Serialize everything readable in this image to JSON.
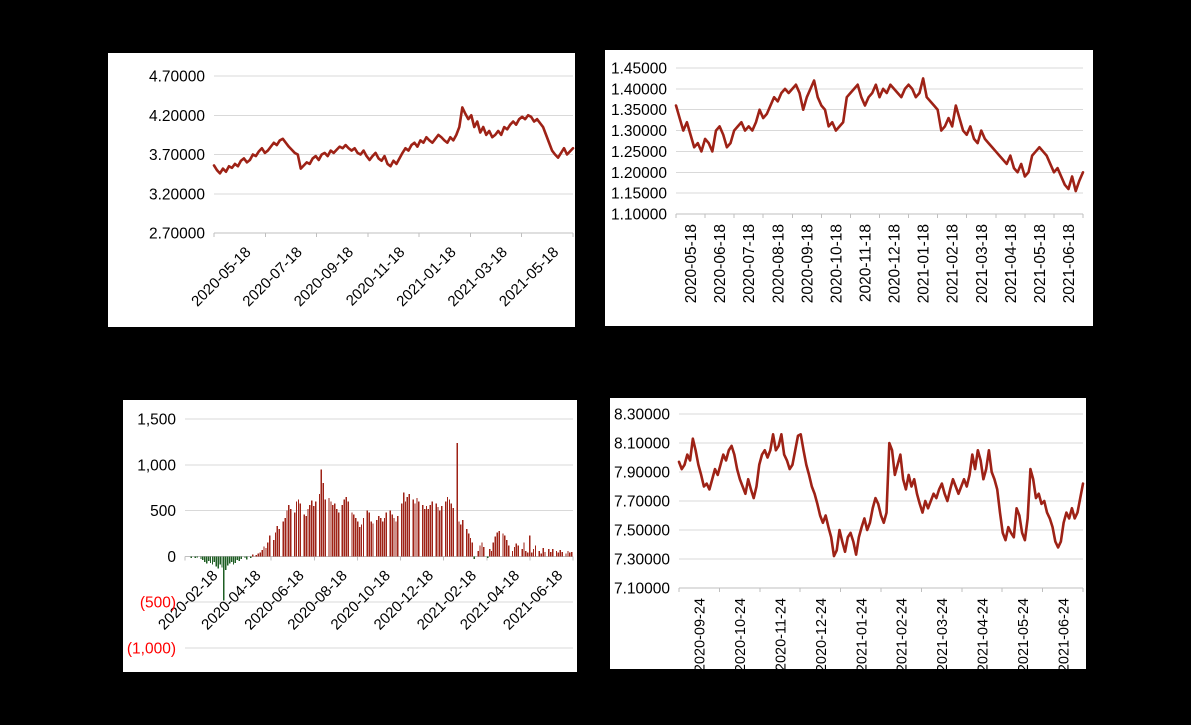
{
  "page": {
    "background_color": "#000000",
    "panel_color": "#FFFFFF"
  },
  "chart_data": [
    {
      "name": "top-left-fx-line",
      "type": "line",
      "line_color": "#9E2216",
      "grid_color": "#D9D9D9",
      "axis_color": "#BFBFBF",
      "label_color": "#000000",
      "negative_label_color": "#FF0000",
      "grid": true,
      "legend": false,
      "ylim": [
        2.7,
        4.7
      ],
      "ytick_step": 0.5,
      "ytick_labels": [
        "4.70000",
        "4.20000",
        "3.70000",
        "3.20000",
        "2.70000"
      ],
      "x_label_rotation": 45,
      "xtick_labels": [
        "2020-05-18",
        "2020-07-18",
        "2020-09-18",
        "2020-11-18",
        "2021-01-18",
        "2021-03-18",
        "2021-05-18"
      ],
      "values": [
        3.56,
        3.5,
        3.46,
        3.52,
        3.48,
        3.55,
        3.53,
        3.58,
        3.55,
        3.62,
        3.65,
        3.6,
        3.63,
        3.7,
        3.68,
        3.74,
        3.78,
        3.72,
        3.75,
        3.8,
        3.85,
        3.82,
        3.88,
        3.9,
        3.85,
        3.8,
        3.76,
        3.72,
        3.7,
        3.52,
        3.56,
        3.6,
        3.58,
        3.65,
        3.68,
        3.63,
        3.7,
        3.72,
        3.68,
        3.75,
        3.72,
        3.76,
        3.8,
        3.78,
        3.82,
        3.78,
        3.75,
        3.78,
        3.72,
        3.7,
        3.75,
        3.68,
        3.63,
        3.68,
        3.72,
        3.65,
        3.62,
        3.68,
        3.58,
        3.55,
        3.62,
        3.58,
        3.65,
        3.72,
        3.78,
        3.75,
        3.82,
        3.85,
        3.8,
        3.88,
        3.85,
        3.92,
        3.88,
        3.85,
        3.9,
        3.95,
        3.92,
        3.88,
        3.85,
        3.92,
        3.88,
        3.95,
        4.05,
        4.3,
        4.22,
        4.15,
        4.2,
        4.05,
        4.12,
        3.98,
        4.05,
        3.95,
        4.0,
        3.92,
        3.95,
        4.0,
        3.95,
        4.05,
        4.02,
        4.08,
        4.12,
        4.08,
        4.15,
        4.18,
        4.15,
        4.2,
        4.18,
        4.12,
        4.15,
        4.1,
        4.05,
        3.95,
        3.85,
        3.75,
        3.7,
        3.66,
        3.72,
        3.78,
        3.7,
        3.74,
        3.78
      ]
    },
    {
      "name": "top-right-fx-line",
      "type": "line",
      "line_color": "#9E2216",
      "grid_color": "#D9D9D9",
      "axis_color": "#BFBFBF",
      "label_color": "#000000",
      "negative_label_color": "#FF0000",
      "grid": true,
      "legend": false,
      "ylim": [
        1.1,
        1.45
      ],
      "ytick_step": 0.05,
      "ytick_labels": [
        "1.45000",
        "1.40000",
        "1.35000",
        "1.30000",
        "1.25000",
        "1.20000",
        "1.15000",
        "1.10000"
      ],
      "x_label_rotation": 90,
      "xtick_labels": [
        "2020-05-18",
        "2020-06-18",
        "2020-07-18",
        "2020-08-18",
        "2020-09-18",
        "2020-10-18",
        "2020-11-18",
        "2020-12-18",
        "2021-01-18",
        "2021-02-18",
        "2021-03-18",
        "2021-04-18",
        "2021-05-18",
        "2021-06-18"
      ],
      "values": [
        1.36,
        1.33,
        1.3,
        1.32,
        1.29,
        1.26,
        1.27,
        1.25,
        1.28,
        1.27,
        1.25,
        1.3,
        1.31,
        1.29,
        1.26,
        1.27,
        1.3,
        1.31,
        1.32,
        1.3,
        1.31,
        1.3,
        1.32,
        1.35,
        1.33,
        1.34,
        1.36,
        1.38,
        1.37,
        1.39,
        1.4,
        1.39,
        1.4,
        1.41,
        1.39,
        1.35,
        1.38,
        1.4,
        1.42,
        1.38,
        1.36,
        1.35,
        1.31,
        1.32,
        1.3,
        1.31,
        1.32,
        1.38,
        1.39,
        1.4,
        1.41,
        1.38,
        1.36,
        1.38,
        1.39,
        1.41,
        1.38,
        1.4,
        1.39,
        1.41,
        1.4,
        1.39,
        1.38,
        1.4,
        1.41,
        1.4,
        1.38,
        1.39,
        1.425,
        1.38,
        1.37,
        1.36,
        1.35,
        1.3,
        1.31,
        1.33,
        1.31,
        1.36,
        1.33,
        1.3,
        1.29,
        1.31,
        1.28,
        1.27,
        1.3,
        1.28,
        1.27,
        1.26,
        1.25,
        1.24,
        1.23,
        1.22,
        1.24,
        1.21,
        1.2,
        1.22,
        1.19,
        1.2,
        1.24,
        1.25,
        1.26,
        1.25,
        1.24,
        1.22,
        1.2,
        1.21,
        1.19,
        1.17,
        1.16,
        1.19,
        1.155,
        1.18,
        1.2
      ]
    },
    {
      "name": "bottom-left-volume-bars",
      "type": "bar",
      "bar_positive_color": "#9E2216",
      "bar_negative_color": "#1E5E23",
      "grid_color": "#D9D9D9",
      "axis_color": "#BFBFBF",
      "label_color": "#000000",
      "negative_label_color": "#FF0000",
      "grid": true,
      "legend": false,
      "axis_value": 0,
      "ylim": [
        -1000,
        1500
      ],
      "ytick_step": 500,
      "ytick_labels": [
        "1,500",
        "1,000",
        "500",
        "0",
        "(500)",
        "(1,000)"
      ],
      "x_label_rotation": 45,
      "xtick_labels": [
        "2020-02-18",
        "2020-04-18",
        "2020-06-18",
        "2020-08-18",
        "2020-10-18",
        "2020-12-18",
        "2021-02-18",
        "2021-04-18",
        "2021-06-18"
      ],
      "values": [
        0,
        0,
        0,
        -15,
        0,
        -20,
        -10,
        0,
        -30,
        -40,
        -60,
        -80,
        -50,
        -70,
        -90,
        -60,
        -110,
        -130,
        -90,
        -120,
        -480,
        -150,
        -100,
        -80,
        -60,
        -90,
        -70,
        -40,
        -50,
        -30,
        0,
        -20,
        -35,
        0,
        -15,
        20,
        0,
        15,
        30,
        40,
        70,
        110,
        90,
        150,
        230,
        0,
        180,
        260,
        330,
        300,
        0,
        380,
        420,
        500,
        560,
        520,
        0,
        480,
        600,
        620,
        580,
        0,
        460,
        440,
        520,
        560,
        610,
        550,
        600,
        0,
        680,
        950,
        800,
        620,
        0,
        640,
        600,
        560,
        580,
        520,
        480,
        0,
        560,
        620,
        650,
        600,
        0,
        480,
        460,
        420,
        380,
        320,
        350,
        420,
        0,
        500,
        480,
        380,
        360,
        0,
        400,
        440,
        420,
        380,
        420,
        480,
        0,
        500,
        460,
        420,
        380,
        440,
        0,
        580,
        700,
        600,
        650,
        680,
        0,
        620,
        580,
        640,
        600,
        0,
        560,
        520,
        550,
        520,
        560,
        600,
        0,
        580,
        540,
        500,
        550,
        0,
        600,
        650,
        620,
        580,
        530,
        0,
        1240,
        380,
        350,
        400,
        0,
        300,
        250,
        200,
        150,
        -30,
        0,
        60,
        120,
        150,
        100,
        0,
        -20,
        80,
        60,
        150,
        220,
        260,
        280,
        0,
        250,
        230,
        180,
        120,
        0,
        60,
        100,
        140,
        120,
        0,
        80,
        150,
        60,
        40,
        230,
        40,
        80,
        120,
        0,
        60,
        30,
        90,
        50,
        0,
        80,
        50,
        80,
        0,
        60,
        40,
        70,
        50,
        0,
        30,
        60,
        40,
        50
      ]
    },
    {
      "name": "bottom-right-fx-line",
      "type": "line",
      "line_color": "#9E2216",
      "grid_color": "#D9D9D9",
      "axis_color": "#BFBFBF",
      "label_color": "#000000",
      "negative_label_color": "#FF0000",
      "grid": true,
      "legend": false,
      "ylim": [
        7.1,
        8.3
      ],
      "ytick_step": 0.2,
      "ytick_labels": [
        "8.30000",
        "8.10000",
        "7.90000",
        "7.70000",
        "7.50000",
        "7.30000",
        "7.10000"
      ],
      "x_label_rotation": 90,
      "xtick_labels": [
        "2020-09-24",
        "2020-10-24",
        "2020-11-24",
        "2020-12-24",
        "2021-01-24",
        "2021-02-24",
        "2021-03-24",
        "2021-04-24",
        "2021-05-24",
        "2021-06-24"
      ],
      "values": [
        7.97,
        7.92,
        7.95,
        8.02,
        7.98,
        8.13,
        8.05,
        7.95,
        7.88,
        7.8,
        7.82,
        7.78,
        7.85,
        7.92,
        7.88,
        7.95,
        8.02,
        7.98,
        8.05,
        8.08,
        8.02,
        7.92,
        7.85,
        7.8,
        7.75,
        7.85,
        7.78,
        7.72,
        7.8,
        7.95,
        8.02,
        8.05,
        8.0,
        8.05,
        8.16,
        8.05,
        8.08,
        8.16,
        8.02,
        7.98,
        7.92,
        7.95,
        8.05,
        8.15,
        8.16,
        8.05,
        7.95,
        7.88,
        7.8,
        7.75,
        7.68,
        7.6,
        7.55,
        7.6,
        7.52,
        7.45,
        7.32,
        7.36,
        7.5,
        7.42,
        7.35,
        7.45,
        7.48,
        7.42,
        7.33,
        7.45,
        7.52,
        7.58,
        7.5,
        7.55,
        7.65,
        7.72,
        7.68,
        7.6,
        7.55,
        7.62,
        8.1,
        8.05,
        7.88,
        7.95,
        8.02,
        7.85,
        7.78,
        7.88,
        7.8,
        7.85,
        7.75,
        7.68,
        7.62,
        7.7,
        7.65,
        7.7,
        7.75,
        7.72,
        7.78,
        7.82,
        7.75,
        7.7,
        7.78,
        7.85,
        7.8,
        7.75,
        7.8,
        7.85,
        7.8,
        7.88,
        8.02,
        7.92,
        8.05,
        7.98,
        7.85,
        7.92,
        8.05,
        7.9,
        7.85,
        7.78,
        7.62,
        7.48,
        7.43,
        7.52,
        7.48,
        7.45,
        7.65,
        7.6,
        7.48,
        7.43,
        7.58,
        7.92,
        7.85,
        7.72,
        7.75,
        7.68,
        7.7,
        7.62,
        7.58,
        7.52,
        7.42,
        7.38,
        7.42,
        7.55,
        7.62,
        7.58,
        7.65,
        7.58,
        7.62,
        7.72,
        7.82
      ]
    }
  ]
}
